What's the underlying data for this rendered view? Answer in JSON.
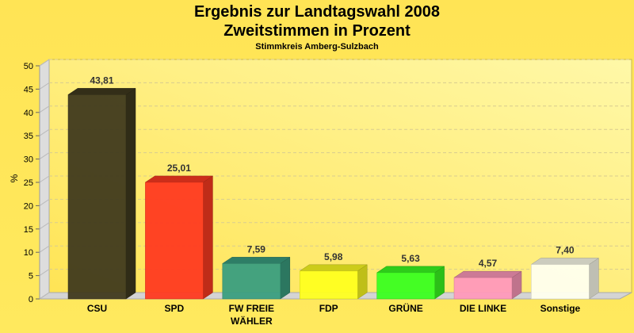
{
  "chart_data": {
    "type": "bar",
    "title": "Ergebnis zur Landtagswahl 2008",
    "subtitle_line2": "Zweitstimmen in Prozent",
    "subtitle": "Stimmkreis Amberg-Sulzbach",
    "ylabel": "%",
    "xlabel": "",
    "ylim": [
      0,
      50
    ],
    "yticks": [
      0,
      5,
      10,
      15,
      20,
      25,
      30,
      35,
      40,
      45,
      50
    ],
    "grid": true,
    "three_d": true,
    "categories": [
      "CSU",
      "SPD",
      "FW FREIE|WÄHLER",
      "FDP",
      "GRÜNE",
      "DIE LINKE",
      "Sonstige"
    ],
    "values": [
      43.81,
      25.01,
      7.59,
      5.98,
      5.63,
      4.57,
      7.4
    ],
    "value_labels": [
      "43,81",
      "25,01",
      "7,59",
      "5,98",
      "5,63",
      "4,57",
      "7,40"
    ],
    "colors": [
      "#403A1E",
      "#FF3A20",
      "#3A9E80",
      "#FFFF20",
      "#3AFF20",
      "#FF99BB",
      "#FFFFEE"
    ]
  }
}
